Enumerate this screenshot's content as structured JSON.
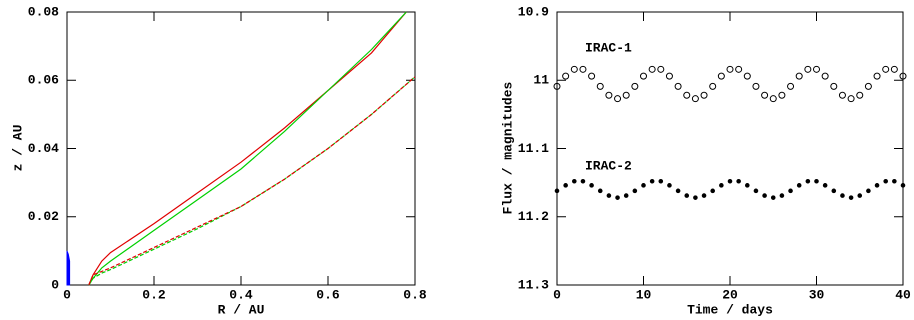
{
  "chart_data": [
    {
      "type": "line",
      "xlabel": "R / AU",
      "ylabel": "z / AU",
      "xlim": [
        0,
        0.8
      ],
      "ylim": [
        0,
        0.08
      ],
      "xticks": [
        0,
        0.2,
        0.4,
        0.6,
        0.8
      ],
      "yticks": [
        0,
        0.02,
        0.04,
        0.06,
        0.08
      ],
      "series": [
        {
          "color": "#0000ff",
          "style": "filled",
          "x": [
            0,
            0,
            0.003,
            0.006,
            0.006
          ],
          "values": [
            0,
            0.01,
            0.009,
            0.007,
            0
          ]
        },
        {
          "color": "#e00000",
          "style": "solid",
          "x": [
            0.05,
            0.06,
            0.08,
            0.1,
            0.2,
            0.3,
            0.4,
            0.5,
            0.6,
            0.7,
            0.78
          ],
          "values": [
            0,
            0.003,
            0.007,
            0.0095,
            0.018,
            0.027,
            0.036,
            0.046,
            0.057,
            0.068,
            0.08
          ]
        },
        {
          "color": "#00d000",
          "style": "solid",
          "x": [
            0.05,
            0.06,
            0.08,
            0.1,
            0.2,
            0.3,
            0.4,
            0.5,
            0.6,
            0.7,
            0.78
          ],
          "values": [
            0,
            0.002,
            0.005,
            0.007,
            0.016,
            0.025,
            0.034,
            0.045,
            0.057,
            0.069,
            0.08
          ]
        },
        {
          "color": "#00d000",
          "style": "dashed",
          "x": [
            0.05,
            0.06,
            0.08,
            0.1,
            0.2,
            0.3,
            0.4,
            0.5,
            0.6,
            0.7,
            0.8
          ],
          "values": [
            0,
            0.002,
            0.0035,
            0.0045,
            0.0105,
            0.0165,
            0.023,
            0.031,
            0.04,
            0.05,
            0.061
          ]
        },
        {
          "color": "#e00000",
          "style": "dashed",
          "x": [
            0.05,
            0.06,
            0.08,
            0.1,
            0.2,
            0.3,
            0.4,
            0.5,
            0.6,
            0.7,
            0.8
          ],
          "values": [
            0,
            0.003,
            0.004,
            0.005,
            0.011,
            0.017,
            0.023,
            0.031,
            0.04,
            0.05,
            0.061
          ]
        }
      ]
    },
    {
      "type": "scatter",
      "xlabel": "Time / days",
      "ylabel": "Flux / magnitudes",
      "xlim": [
        0,
        40
      ],
      "ylim": [
        10.9,
        11.3
      ],
      "invert_y": true,
      "xticks": [
        0,
        10,
        20,
        30,
        40
      ],
      "yticks": [
        10.9,
        11,
        11.1,
        11.2,
        11.3
      ],
      "annotations": [
        "IRAC-1",
        "IRAC-2"
      ],
      "x": [
        0,
        1,
        2,
        3,
        4,
        5,
        6,
        7,
        8,
        9,
        10,
        11,
        12,
        13,
        14,
        15,
        16,
        17,
        18,
        19,
        20,
        21,
        22,
        23,
        24,
        25,
        26,
        27,
        28,
        29,
        30,
        31,
        32,
        33,
        34,
        35,
        36,
        37,
        38,
        39,
        40
      ],
      "series": [
        {
          "color": "#000000",
          "marker": "open",
          "values": [
            11.009,
            10.994,
            10.984,
            10.984,
            10.994,
            11.009,
            11.022,
            11.027,
            11.022,
            11.009,
            10.994,
            10.984,
            10.984,
            10.994,
            11.009,
            11.022,
            11.027,
            11.022,
            11.009,
            10.994,
            10.984,
            10.984,
            10.994,
            11.009,
            11.022,
            11.027,
            11.022,
            11.009,
            10.994,
            10.984,
            10.984,
            10.994,
            11.009,
            11.022,
            11.027,
            11.022,
            11.009,
            10.994,
            10.984,
            10.984,
            10.994
          ]
        },
        {
          "color": "#000000",
          "marker": "filled",
          "values": [
            11.162,
            11.154,
            11.148,
            11.148,
            11.154,
            11.162,
            11.169,
            11.172,
            11.169,
            11.162,
            11.154,
            11.148,
            11.148,
            11.154,
            11.162,
            11.169,
            11.172,
            11.169,
            11.162,
            11.154,
            11.148,
            11.148,
            11.154,
            11.162,
            11.169,
            11.172,
            11.169,
            11.162,
            11.154,
            11.148,
            11.148,
            11.154,
            11.162,
            11.169,
            11.172,
            11.169,
            11.162,
            11.154,
            11.148,
            11.148,
            11.154
          ]
        }
      ]
    }
  ]
}
